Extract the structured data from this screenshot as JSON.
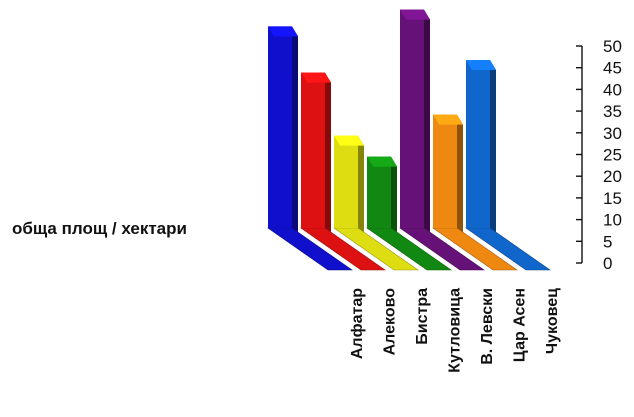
{
  "chart_data": {
    "type": "bar",
    "title": "",
    "ylabel": "обща площ / хектари",
    "xlabel": "",
    "categories": [
      "Алфатар",
      "Алеково",
      "Бистра",
      "Кутловица",
      "В. Левски",
      "Цар Асен",
      "Чуковец"
    ],
    "series": [
      {
        "values": [
          48,
          37,
          22,
          17,
          52,
          27,
          40
        ],
        "colors": [
          "#1010cc",
          "#dd1111",
          "#dddd11",
          "#118811",
          "#661177",
          "#ee8811",
          "#1166cc"
        ]
      }
    ],
    "ylim": [
      0,
      50
    ],
    "yticks": [
      0,
      5,
      10,
      15,
      20,
      25,
      30,
      35,
      40,
      45,
      50
    ],
    "style": "3d",
    "grid": false,
    "legend": "none"
  }
}
